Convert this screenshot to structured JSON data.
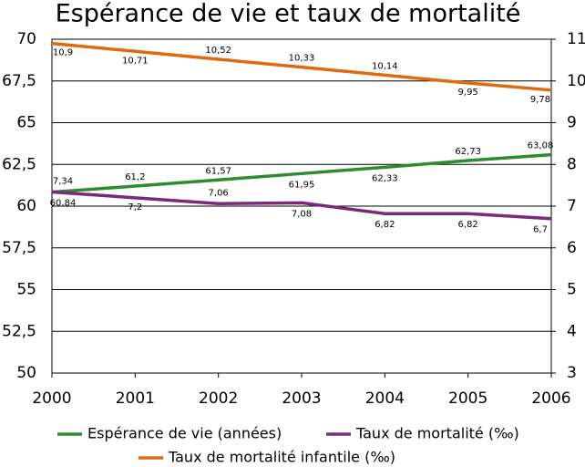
{
  "chart_data": {
    "type": "line",
    "title": "Espérance de vie et taux de mortalité",
    "x": [
      2000,
      2001,
      2002,
      2003,
      2004,
      2005,
      2006
    ],
    "xlim": [
      2000,
      2006
    ],
    "xticks": [
      2000,
      2001,
      2002,
      2003,
      2004,
      2005,
      2006
    ],
    "ylim": [
      50,
      70
    ],
    "yticks": [
      50,
      {
        "value": 52.5,
        "label": "52,5"
      },
      55,
      {
        "value": 57.5,
        "label": "57,5"
      },
      60,
      {
        "value": 62.5,
        "label": "62,5"
      },
      65,
      {
        "value": 67.5,
        "label": "67,5"
      },
      70
    ],
    "y2lim": [
      3,
      11
    ],
    "y2ticks": [
      3,
      4,
      5,
      6,
      7,
      8,
      9,
      10,
      11
    ],
    "grid": true,
    "legend": "bottom",
    "series": [
      {
        "name": "Espérance de vie (années)",
        "color": "#2e8b2e",
        "values": [
          60.84,
          61.2,
          61.57,
          61.95,
          62.33,
          62.73,
          63.08
        ],
        "value_labels": [
          "60,84",
          "61,2",
          "61,57",
          "61,95",
          "62,33",
          "62,73",
          "63,08"
        ]
      },
      {
        "name": "Taux de mortalité (‰)",
        "color": "#7b2a7b",
        "axis": "y2",
        "values": [
          7.34,
          7.2,
          7.06,
          7.08,
          6.82,
          6.82,
          6.7
        ],
        "value_labels": [
          "7,34",
          "7,2",
          "7,06",
          "7,08",
          "6,82",
          "6,82",
          "6,7"
        ]
      },
      {
        "name": "Taux de mortalité infantile (‰)",
        "color": "#e06a10",
        "axis": "y2",
        "values": [
          10.9,
          10.71,
          10.52,
          10.33,
          10.14,
          9.95,
          9.78
        ],
        "value_labels": [
          "10,9",
          "10,71",
          "10,52",
          "10,33",
          "10,14",
          "9,95",
          "9,78"
        ]
      }
    ]
  }
}
